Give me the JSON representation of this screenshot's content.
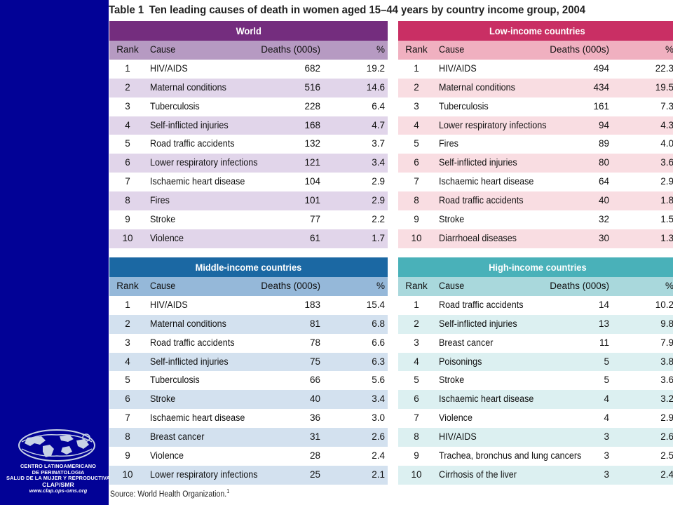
{
  "title": {
    "number": "Table 1",
    "text": "Ten leading causes of death in women aged 15–44 years by country income group, 2004"
  },
  "columns": {
    "rank": "Rank",
    "cause": "Cause",
    "deaths": "Deaths (000s)",
    "pct": "%"
  },
  "tables": [
    {
      "name": "World",
      "colors": {
        "band": "#742d7e",
        "header": "#b69ac2",
        "even": "#e1d5ea",
        "odd": "#ffffff"
      },
      "rows": [
        [
          "1",
          "HIV/AIDS",
          "682",
          "19.2"
        ],
        [
          "2",
          "Maternal conditions",
          "516",
          "14.6"
        ],
        [
          "3",
          "Tuberculosis",
          "228",
          "6.4"
        ],
        [
          "4",
          "Self-inflicted injuries",
          "168",
          "4.7"
        ],
        [
          "5",
          "Road traffic accidents",
          "132",
          "3.7"
        ],
        [
          "6",
          "Lower respiratory infections",
          "121",
          "3.4"
        ],
        [
          "7",
          "Ischaemic heart disease",
          "104",
          "2.9"
        ],
        [
          "8",
          "Fires",
          "101",
          "2.9"
        ],
        [
          "9",
          "Stroke",
          "77",
          "2.2"
        ],
        [
          "10",
          "Violence",
          "61",
          "1.7"
        ]
      ]
    },
    {
      "name": "Low-income countries",
      "colors": {
        "band": "#c92f64",
        "header": "#f0b0c0",
        "even": "#f9dde2",
        "odd": "#ffffff"
      },
      "rows": [
        [
          "1",
          "HIV/AIDS",
          "494",
          "22.3"
        ],
        [
          "2",
          "Maternal conditions",
          "434",
          "19.5"
        ],
        [
          "3",
          "Tuberculosis",
          "161",
          "7.3"
        ],
        [
          "4",
          "Lower respiratory infections",
          "94",
          "4.3"
        ],
        [
          "5",
          "Fires",
          "89",
          "4.0"
        ],
        [
          "6",
          "Self-inflicted injuries",
          "80",
          "3.6"
        ],
        [
          "7",
          "Ischaemic heart disease",
          "64",
          "2.9"
        ],
        [
          "8",
          "Road traffic accidents",
          "40",
          "1.8"
        ],
        [
          "9",
          "Stroke",
          "32",
          "1.5"
        ],
        [
          "10",
          "Diarrhoeal diseases",
          "30",
          "1.3"
        ]
      ]
    },
    {
      "name": "Middle-income countries",
      "colors": {
        "band": "#1b68a3",
        "header": "#95b8d9",
        "even": "#d3e1ef",
        "odd": "#ffffff"
      },
      "rows": [
        [
          "1",
          "HIV/AIDS",
          "183",
          "15.4"
        ],
        [
          "2",
          "Maternal conditions",
          "81",
          "6.8"
        ],
        [
          "3",
          "Road traffic accidents",
          "78",
          "6.6"
        ],
        [
          "4",
          "Self-inflicted injuries",
          "75",
          "6.3"
        ],
        [
          "5",
          "Tuberculosis",
          "66",
          "5.6"
        ],
        [
          "6",
          "Stroke",
          "40",
          "3.4"
        ],
        [
          "7",
          "Ischaemic heart disease",
          "36",
          "3.0"
        ],
        [
          "8",
          "Breast cancer",
          "31",
          "2.6"
        ],
        [
          "9",
          "Violence",
          "28",
          "2.4"
        ],
        [
          "10",
          "Lower respiratory infections",
          "25",
          "2.1"
        ]
      ]
    },
    {
      "name": "High-income countries",
      "colors": {
        "band": "#49b1b9",
        "header": "#a9d8dc",
        "even": "#dcf0f1",
        "odd": "#ffffff"
      },
      "rows": [
        [
          "1",
          "Road traffic accidents",
          "14",
          "10.2"
        ],
        [
          "2",
          "Self-inflicted injuries",
          "13",
          "9.8"
        ],
        [
          "3",
          "Breast cancer",
          "11",
          "7.9"
        ],
        [
          "4",
          "Poisonings",
          "5",
          "3.8"
        ],
        [
          "5",
          "Stroke",
          "5",
          "3.6"
        ],
        [
          "6",
          "Ischaemic heart disease",
          "4",
          "3.2"
        ],
        [
          "7",
          "Violence",
          "4",
          "2.9"
        ],
        [
          "8",
          "HIV/AIDS",
          "3",
          "2.6"
        ],
        [
          "9",
          "Trachea, bronchus and lung cancers",
          "3",
          "2.5"
        ],
        [
          "10",
          "Cirrhosis of the liver",
          "3",
          "2.4"
        ]
      ]
    }
  ],
  "source": {
    "text": "Source: World Health Organization.",
    "ref": "1"
  },
  "logo": {
    "icon": "clap-globe-logo",
    "lines": [
      "CENTRO LATINOAMERICANO",
      "DE PERINATOLOGIA",
      "SALUD DE LA MUJER Y REPRODUCTIVA"
    ],
    "acronym": "CLAP/SMR",
    "url": "www.clap.ops-oms.org"
  }
}
